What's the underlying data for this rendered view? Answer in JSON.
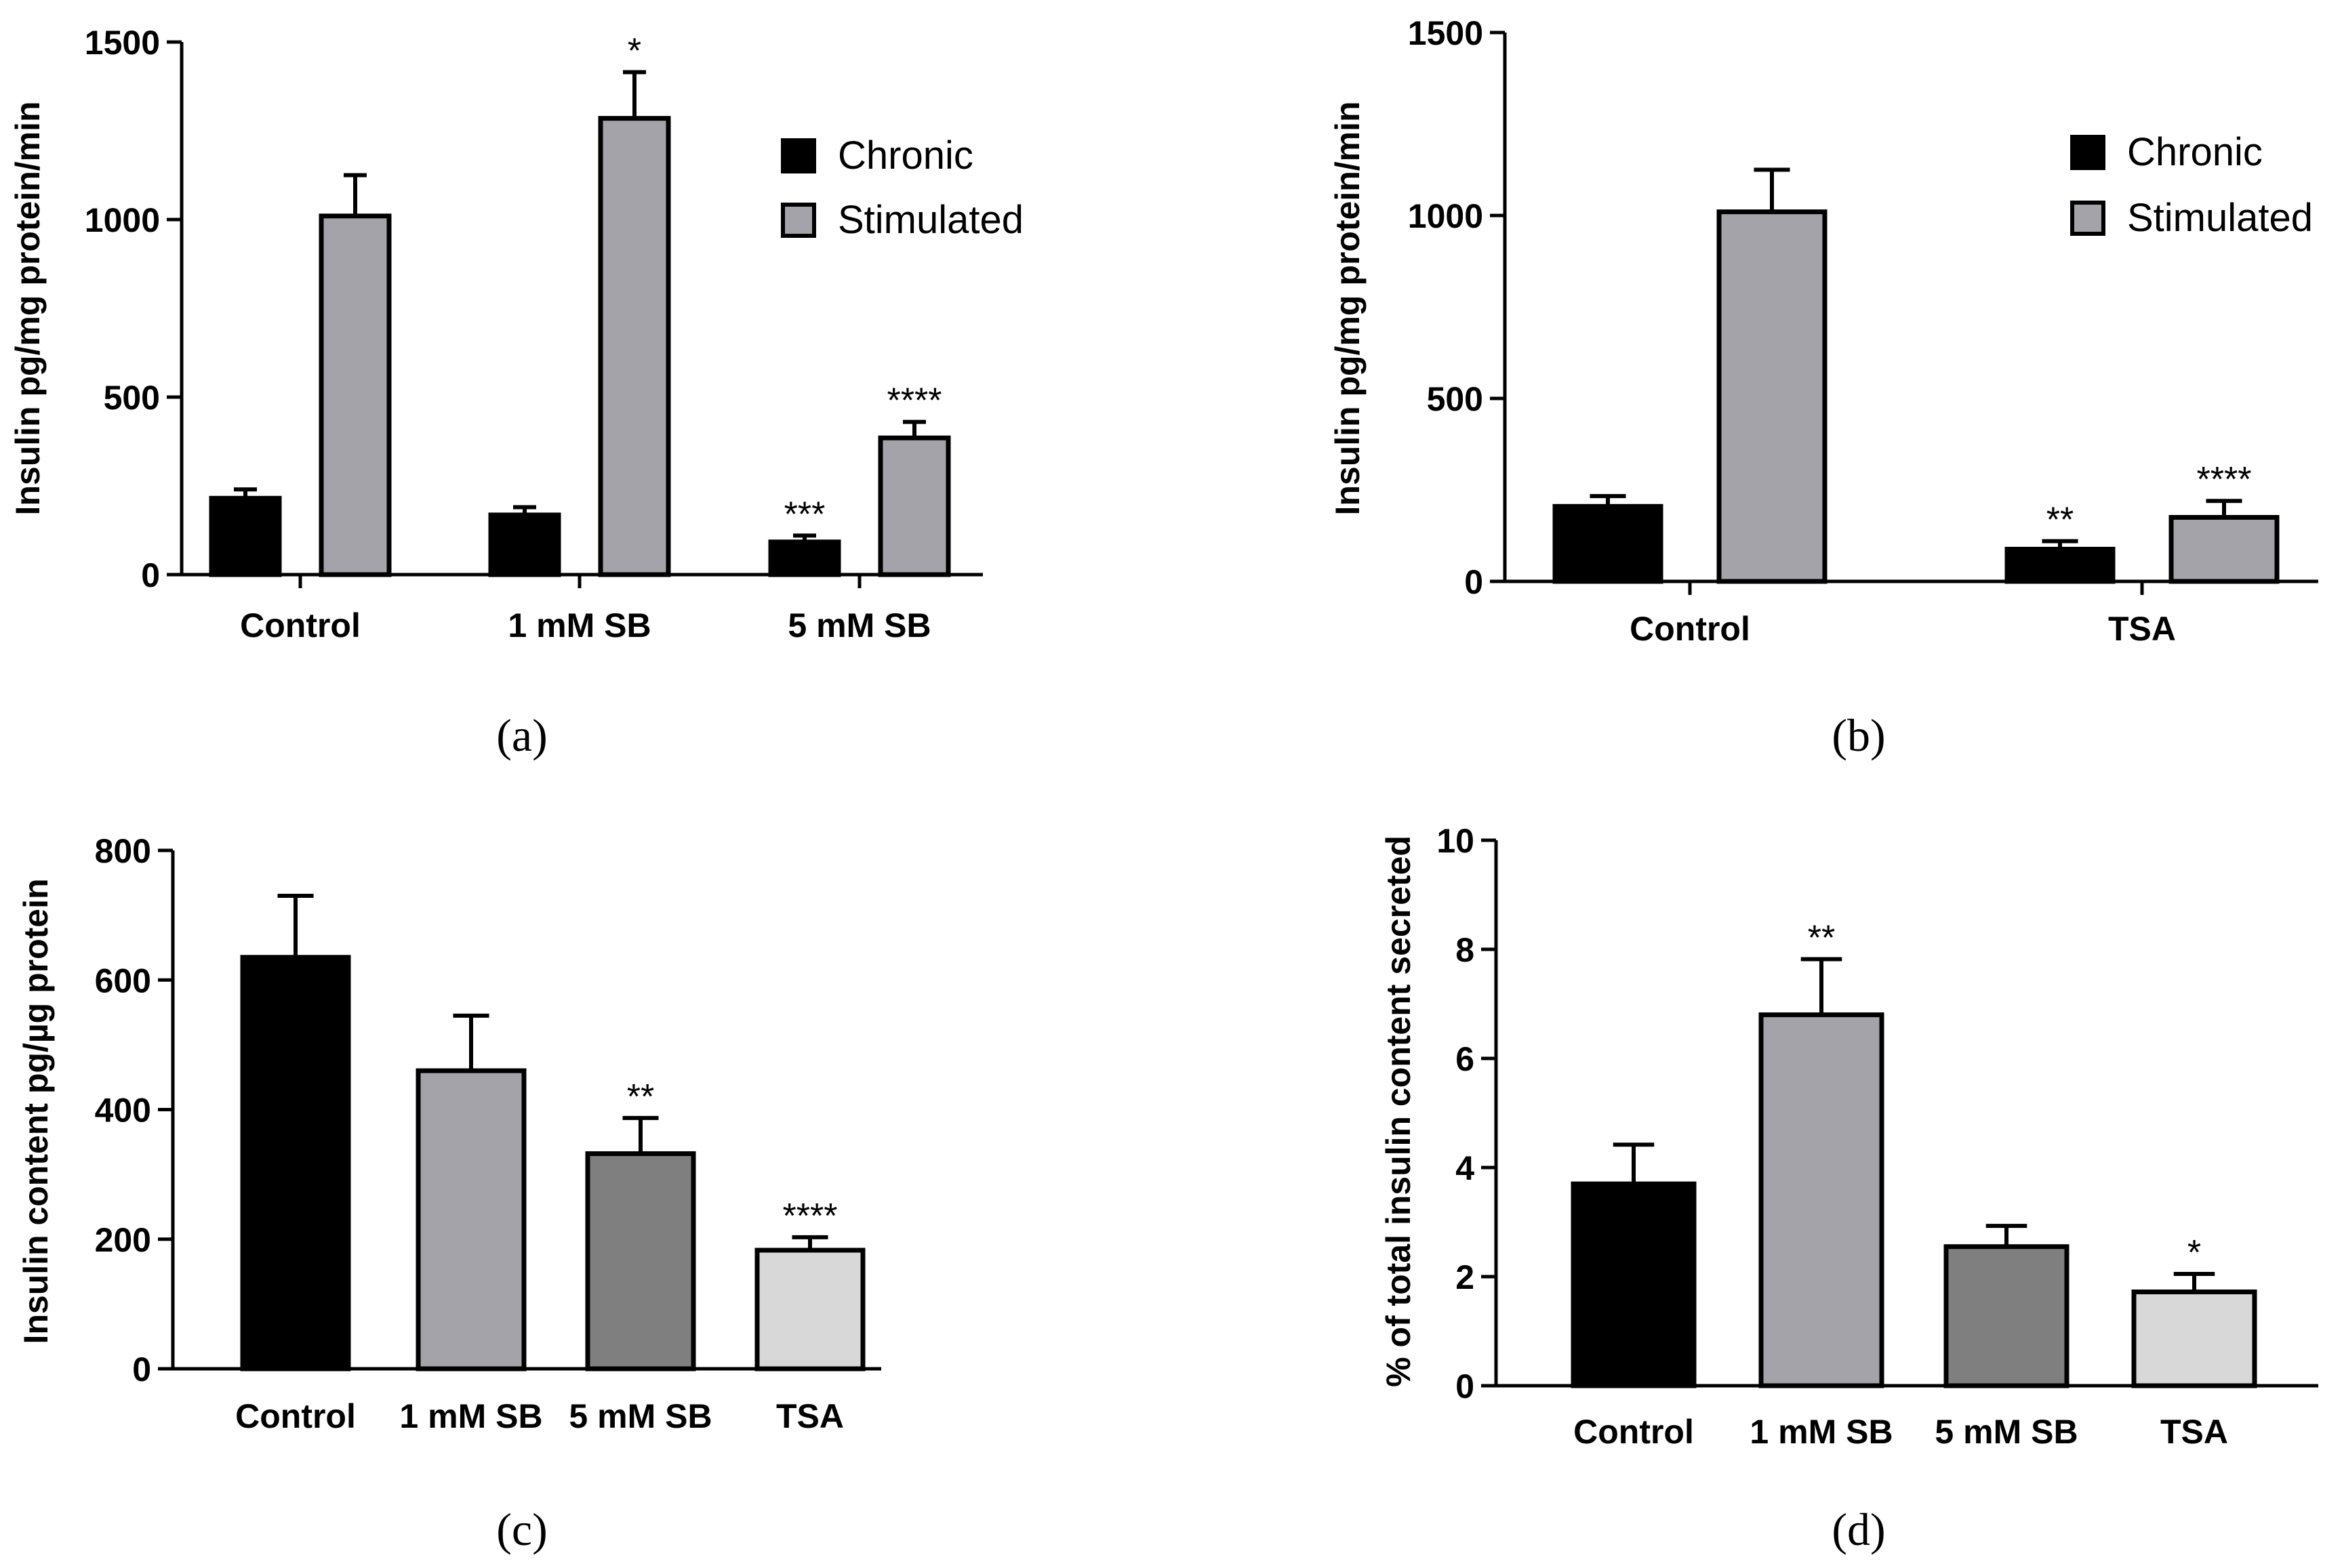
{
  "panels": [
    {
      "id": "a",
      "caption": "(a)",
      "chart_data": {
        "type": "bar",
        "title": "",
        "ylabel": "Insulin pg/mg protein/min",
        "xlabel": "",
        "ylim": [
          0,
          1500
        ],
        "yticks": [
          0,
          500,
          1000,
          1500
        ],
        "categories": [
          "Control",
          "1 mM SB",
          "5 mM SB"
        ],
        "series": [
          {
            "name": "Chronic",
            "color": "#000000",
            "values": [
              215,
              168,
              92
            ],
            "errors": [
              25,
              22,
              18
            ],
            "annotations": [
              "",
              "",
              "***"
            ]
          },
          {
            "name": "Stimulated",
            "color": "#a3a3a9",
            "values": [
              1010,
              1285,
              385
            ],
            "errors": [
              115,
              130,
              45
            ],
            "annotations": [
              "",
              "*",
              "****"
            ]
          }
        ],
        "legend": [
          "Chronic",
          "Stimulated"
        ],
        "legend_position": "top-right"
      }
    },
    {
      "id": "b",
      "caption": "(b)",
      "chart_data": {
        "type": "bar",
        "title": "",
        "ylabel": "Insulin pg/mg protein/min",
        "xlabel": "",
        "ylim": [
          0,
          1500
        ],
        "yticks": [
          0,
          500,
          1000,
          1500
        ],
        "categories": [
          "Control",
          "TSA"
        ],
        "series": [
          {
            "name": "Chronic",
            "color": "#000000",
            "values": [
              205,
              88
            ],
            "errors": [
              28,
              22
            ],
            "annotations": [
              "",
              "**"
            ]
          },
          {
            "name": "Stimulated",
            "color": "#a3a3a9",
            "values": [
              1010,
              175
            ],
            "errors": [
              115,
              45
            ],
            "annotations": [
              "",
              "****"
            ]
          }
        ],
        "legend": [
          "Chronic",
          "Stimulated"
        ],
        "legend_position": "top-right"
      }
    },
    {
      "id": "c",
      "caption": "(c)",
      "chart_data": {
        "type": "bar",
        "title": "",
        "ylabel": "Insulin content pg/µg protein",
        "xlabel": "",
        "ylim": [
          0,
          800
        ],
        "yticks": [
          0,
          200,
          400,
          600,
          800
        ],
        "categories": [
          "Control",
          "1 mM SB",
          "5 mM SB",
          "TSA"
        ],
        "values": [
          635,
          460,
          332,
          183
        ],
        "errors": [
          95,
          85,
          55,
          20
        ],
        "colors": [
          "#000000",
          "#a3a3a9",
          "#7f7f7f",
          "#d8d8d8"
        ],
        "annotations": [
          "",
          "",
          "**",
          "****"
        ]
      }
    },
    {
      "id": "d",
      "caption": "(d)",
      "chart_data": {
        "type": "bar",
        "title": "",
        "ylabel": "% of total insulin content secreted",
        "xlabel": "",
        "ylim": [
          0,
          10
        ],
        "yticks": [
          0,
          2,
          4,
          6,
          8,
          10
        ],
        "categories": [
          "Control",
          "1 mM SB",
          "5 mM SB",
          "TSA"
        ],
        "values": [
          3.7,
          6.8,
          2.55,
          1.72
        ],
        "errors": [
          0.72,
          1.02,
          0.38,
          0.33
        ],
        "colors": [
          "#000000",
          "#a3a3a9",
          "#7f7f7f",
          "#d8d8d8"
        ],
        "annotations": [
          "",
          "**",
          "",
          "*"
        ]
      }
    }
  ]
}
